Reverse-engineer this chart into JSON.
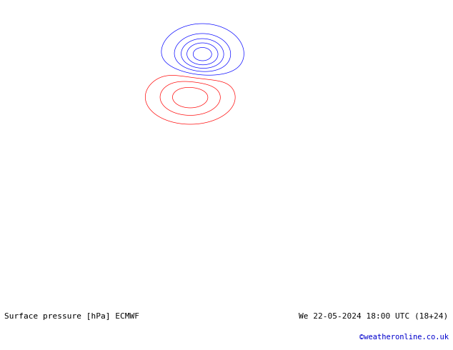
{
  "title_left": "Surface pressure [hPa] ECMWF",
  "title_right": "We 22-05-2024 18:00 UTC (18+24)",
  "copyright": "©weatheronline.co.uk",
  "background_color": "#ffffff",
  "ocean_color": "#d8dde8",
  "land_color": "#c8ddb0",
  "land_gray_color": "#b8b8b8",
  "contour_color_low": "#0000ff",
  "contour_color_high": "#ff0000",
  "contour_color_1013": "#000000",
  "bottom_text_color_left": "#000000",
  "bottom_text_color_right": "#000000",
  "copyright_color": "#0000cc",
  "fig_width": 6.34,
  "fig_height": 4.9,
  "dpi": 100,
  "contour_interval": 4,
  "contour_min": 940,
  "contour_max": 1050
}
